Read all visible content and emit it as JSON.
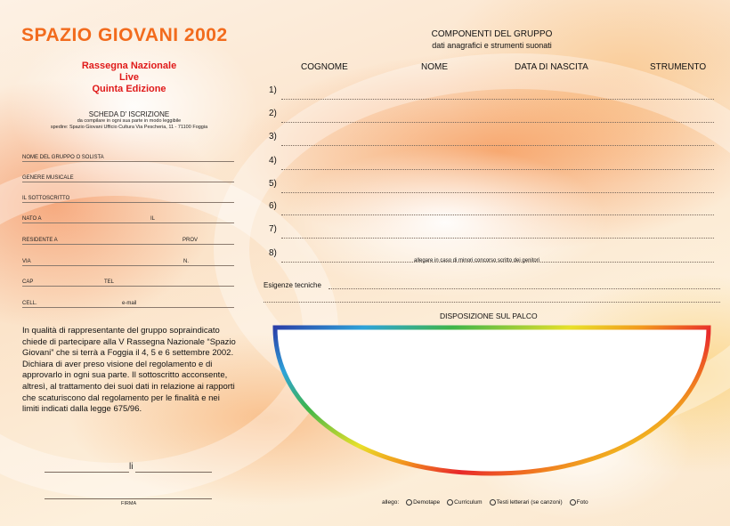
{
  "header": {
    "title": "SPAZIO GIOVANI 2002",
    "rassegna": [
      "Rassegna Nazionale",
      "Live",
      "Quinta Edizione"
    ]
  },
  "scheda": {
    "title": "SCHEDA D' ISCRIZIONE",
    "line1": "da compilare in ogni sua parte in modo leggibile",
    "line2": "spedire: Spazio Giovani Ufficio Cultura Via Pescheria, 11 - 71100 Foggia"
  },
  "form_fields": {
    "nome_gruppo": "NOME DEL GRUPPO O SOLISTA",
    "genere": "GENERE MUSICALE",
    "sottoscritto": "IL SOTTOSCRITTO",
    "nato_a": "NATO A",
    "il": "IL",
    "residente": "RESIDENTE A",
    "prov": "PROV",
    "via": "VIA",
    "n": "N.",
    "cap": "CAP",
    "tel": "TEL",
    "cell": "CELL.",
    "email": "e-mail"
  },
  "declaration": "In qualità di rappresentante del gruppo sopraindicato chiede di partecipare alla V Rassegna Nazionale “Spazio Giovani” che si terrà a Foggia il 4, 5 e 6 settembre 2002. Dichiara di aver preso visione del regolamento e di approvarlo in ogni sua parte. Il sottoscritto acconsente, altresì, al trattamento dei suoi dati in relazione ai rapporti che scaturiscono dal regolamento per le finalità e nei limiti indicati dalla legge 675/96.",
  "signature": {
    "li": "li",
    "firma": "FIRMA"
  },
  "componenti": {
    "title": "COMPONENTI DEL GRUPPO",
    "subtitle": "dati anagrafici e strumenti suonati",
    "columns": [
      "COGNOME",
      "NOME",
      "DATA DI NASCITA",
      "STRUMENTO"
    ],
    "rows": [
      "1)",
      "2)",
      "3)",
      "4)",
      "5)",
      "6)",
      "7)",
      "8)"
    ],
    "note_minori": "allegare in caso di minori concorso scritto dei genitori"
  },
  "esigenze_label": "Esigenze tecniche",
  "palco_label": "DISPOSIZIONE SUL PALCO",
  "allego": {
    "label": "allego:",
    "options": [
      "Demotape",
      "Curriculum",
      "Testi letterari (se canzoni)",
      "Foto"
    ]
  }
}
